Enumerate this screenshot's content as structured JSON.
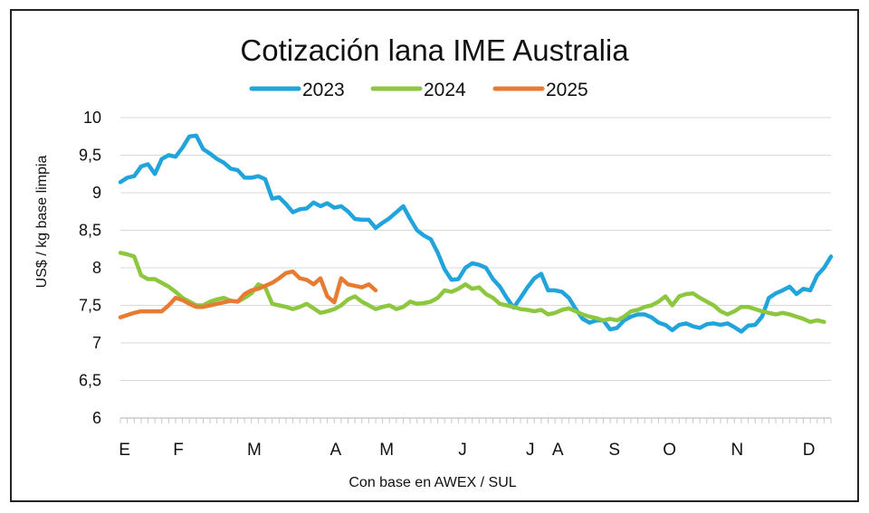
{
  "chart_data": {
    "type": "line",
    "title": "Cotización lana IME Australia",
    "ylabel": "US$ / kg base limpia",
    "xlabel": "Con base en AWEX / SUL",
    "ylim": [
      6,
      10
    ],
    "yticks": [
      "6",
      "6,5",
      "7",
      "7,5",
      "8",
      "8,5",
      "9",
      "9,5",
      "10"
    ],
    "ytick_values": [
      6,
      6.5,
      7,
      7.5,
      8,
      8.5,
      9,
      9.5,
      10
    ],
    "xlim": [
      0,
      51.5
    ],
    "x_unit": "week of year",
    "month_labels": [
      "E",
      "F",
      "M",
      "A",
      "M",
      "J",
      "J",
      "A",
      "S",
      "O",
      "N",
      "D"
    ],
    "month_label_weeks": [
      0.3,
      4.2,
      9.7,
      15.6,
      19.3,
      24.8,
      29.7,
      31.7,
      35.8,
      39.8,
      44.7,
      49.9
    ],
    "grid": "horizontal",
    "legend_position": "top",
    "series": [
      {
        "name": "2023",
        "color": "#21a4dc",
        "points": [
          [
            0,
            9.14
          ],
          [
            0.5,
            9.2
          ],
          [
            1,
            9.22
          ],
          [
            1.5,
            9.35
          ],
          [
            2,
            9.38
          ],
          [
            2.5,
            9.25
          ],
          [
            3,
            9.45
          ],
          [
            3.5,
            9.5
          ],
          [
            4,
            9.48
          ],
          [
            4.5,
            9.6
          ],
          [
            5,
            9.75
          ],
          [
            5.5,
            9.76
          ],
          [
            6,
            9.58
          ],
          [
            6.5,
            9.52
          ],
          [
            7,
            9.45
          ],
          [
            7.5,
            9.4
          ],
          [
            8,
            9.32
          ],
          [
            8.5,
            9.3
          ],
          [
            9,
            9.2
          ],
          [
            9.5,
            9.2
          ],
          [
            10,
            9.22
          ],
          [
            10.5,
            9.18
          ],
          [
            11,
            8.92
          ],
          [
            11.5,
            8.94
          ],
          [
            12,
            8.85
          ],
          [
            12.5,
            8.74
          ],
          [
            13,
            8.78
          ],
          [
            13.5,
            8.79
          ],
          [
            14,
            8.87
          ],
          [
            14.5,
            8.82
          ],
          [
            15,
            8.86
          ],
          [
            15.5,
            8.8
          ],
          [
            16,
            8.82
          ],
          [
            16.5,
            8.75
          ],
          [
            17,
            8.65
          ],
          [
            17.5,
            8.64
          ],
          [
            18,
            8.64
          ],
          [
            18.5,
            8.53
          ],
          [
            19,
            8.6
          ],
          [
            19.5,
            8.66
          ],
          [
            20,
            8.74
          ],
          [
            20.5,
            8.82
          ],
          [
            21,
            8.65
          ],
          [
            21.5,
            8.5
          ],
          [
            22,
            8.43
          ],
          [
            22.5,
            8.38
          ],
          [
            23,
            8.2
          ],
          [
            23.5,
            7.98
          ],
          [
            24,
            7.84
          ],
          [
            24.5,
            7.85
          ],
          [
            25,
            8.0
          ],
          [
            25.5,
            8.06
          ],
          [
            26,
            8.04
          ],
          [
            26.5,
            8.0
          ],
          [
            27,
            7.85
          ],
          [
            27.5,
            7.75
          ],
          [
            28,
            7.6
          ],
          [
            28.5,
            7.47
          ],
          [
            29,
            7.6
          ],
          [
            29.5,
            7.74
          ],
          [
            30,
            7.86
          ],
          [
            30.5,
            7.92
          ],
          [
            31,
            7.7
          ],
          [
            31.5,
            7.7
          ],
          [
            32,
            7.68
          ],
          [
            32.5,
            7.6
          ],
          [
            33,
            7.45
          ],
          [
            33.5,
            7.32
          ],
          [
            34,
            7.27
          ],
          [
            34.5,
            7.3
          ],
          [
            35,
            7.3
          ],
          [
            35.5,
            7.18
          ],
          [
            36,
            7.2
          ],
          [
            36.5,
            7.3
          ],
          [
            37,
            7.35
          ],
          [
            37.5,
            7.38
          ],
          [
            38,
            7.38
          ],
          [
            38.5,
            7.34
          ],
          [
            39,
            7.27
          ],
          [
            39.5,
            7.24
          ],
          [
            40,
            7.17
          ],
          [
            40.5,
            7.24
          ],
          [
            41,
            7.26
          ],
          [
            41.5,
            7.22
          ],
          [
            42,
            7.2
          ],
          [
            42.5,
            7.25
          ],
          [
            43,
            7.26
          ],
          [
            43.5,
            7.24
          ],
          [
            44,
            7.26
          ],
          [
            44.5,
            7.21
          ],
          [
            45,
            7.15
          ],
          [
            45.5,
            7.23
          ],
          [
            46,
            7.24
          ],
          [
            46.5,
            7.35
          ],
          [
            47,
            7.6
          ],
          [
            47.5,
            7.66
          ],
          [
            48,
            7.7
          ],
          [
            48.5,
            7.75
          ],
          [
            49,
            7.65
          ],
          [
            49.5,
            7.72
          ],
          [
            50,
            7.7
          ],
          [
            50.5,
            7.9
          ],
          [
            51,
            8.0
          ],
          [
            51.5,
            8.15
          ]
        ]
      },
      {
        "name": "2024",
        "color": "#8dc63f",
        "points": [
          [
            0,
            8.2
          ],
          [
            0.5,
            8.18
          ],
          [
            1,
            8.15
          ],
          [
            1.5,
            7.9
          ],
          [
            2,
            7.85
          ],
          [
            2.5,
            7.85
          ],
          [
            3,
            7.8
          ],
          [
            3.5,
            7.75
          ],
          [
            4,
            7.68
          ],
          [
            4.5,
            7.6
          ],
          [
            5,
            7.55
          ],
          [
            5.5,
            7.5
          ],
          [
            6,
            7.5
          ],
          [
            6.5,
            7.55
          ],
          [
            7,
            7.58
          ],
          [
            7.5,
            7.6
          ],
          [
            8,
            7.56
          ],
          [
            8.5,
            7.55
          ],
          [
            9,
            7.6
          ],
          [
            9.5,
            7.66
          ],
          [
            10,
            7.78
          ],
          [
            10.5,
            7.74
          ],
          [
            11,
            7.52
          ],
          [
            11.5,
            7.5
          ],
          [
            12,
            7.48
          ],
          [
            12.5,
            7.45
          ],
          [
            13,
            7.48
          ],
          [
            13.5,
            7.52
          ],
          [
            14,
            7.46
          ],
          [
            14.5,
            7.4
          ],
          [
            15,
            7.42
          ],
          [
            15.5,
            7.45
          ],
          [
            16,
            7.5
          ],
          [
            16.5,
            7.58
          ],
          [
            17,
            7.62
          ],
          [
            17.5,
            7.55
          ],
          [
            18,
            7.5
          ],
          [
            18.5,
            7.45
          ],
          [
            19,
            7.48
          ],
          [
            19.5,
            7.5
          ],
          [
            20,
            7.45
          ],
          [
            20.5,
            7.48
          ],
          [
            21,
            7.55
          ],
          [
            21.5,
            7.52
          ],
          [
            22,
            7.53
          ],
          [
            22.5,
            7.55
          ],
          [
            23,
            7.6
          ],
          [
            23.5,
            7.7
          ],
          [
            24,
            7.68
          ],
          [
            24.5,
            7.72
          ],
          [
            25,
            7.78
          ],
          [
            25.5,
            7.72
          ],
          [
            26,
            7.74
          ],
          [
            26.5,
            7.65
          ],
          [
            27,
            7.6
          ],
          [
            27.5,
            7.52
          ],
          [
            28,
            7.5
          ],
          [
            28.5,
            7.48
          ],
          [
            29,
            7.45
          ],
          [
            29.5,
            7.44
          ],
          [
            30,
            7.42
          ],
          [
            30.5,
            7.44
          ],
          [
            31,
            7.38
          ],
          [
            31.5,
            7.4
          ],
          [
            32,
            7.44
          ],
          [
            32.5,
            7.46
          ],
          [
            33,
            7.42
          ],
          [
            33.5,
            7.38
          ],
          [
            34,
            7.35
          ],
          [
            34.5,
            7.33
          ],
          [
            35,
            7.3
          ],
          [
            35.5,
            7.32
          ],
          [
            36,
            7.3
          ],
          [
            36.5,
            7.35
          ],
          [
            37,
            7.42
          ],
          [
            37.5,
            7.44
          ],
          [
            38,
            7.48
          ],
          [
            38.5,
            7.5
          ],
          [
            39,
            7.55
          ],
          [
            39.5,
            7.62
          ],
          [
            40,
            7.5
          ],
          [
            40.5,
            7.62
          ],
          [
            41,
            7.65
          ],
          [
            41.5,
            7.66
          ],
          [
            42,
            7.6
          ],
          [
            42.5,
            7.55
          ],
          [
            43,
            7.5
          ],
          [
            43.5,
            7.42
          ],
          [
            44,
            7.38
          ],
          [
            44.5,
            7.42
          ],
          [
            45,
            7.48
          ],
          [
            45.5,
            7.48
          ],
          [
            46,
            7.45
          ],
          [
            46.5,
            7.42
          ],
          [
            47,
            7.4
          ],
          [
            47.5,
            7.38
          ],
          [
            48,
            7.4
          ],
          [
            48.5,
            7.38
          ],
          [
            49,
            7.35
          ],
          [
            49.5,
            7.32
          ],
          [
            50,
            7.28
          ],
          [
            50.5,
            7.3
          ],
          [
            51,
            7.28
          ]
        ]
      },
      {
        "name": "2025",
        "color": "#e87b32",
        "points": [
          [
            0,
            7.34
          ],
          [
            0.5,
            7.37
          ],
          [
            1,
            7.4
          ],
          [
            1.5,
            7.42
          ],
          [
            2,
            7.42
          ],
          [
            2.5,
            7.42
          ],
          [
            3,
            7.42
          ],
          [
            3.5,
            7.5
          ],
          [
            4,
            7.6
          ],
          [
            4.5,
            7.57
          ],
          [
            5,
            7.52
          ],
          [
            5.5,
            7.48
          ],
          [
            6,
            7.48
          ],
          [
            6.5,
            7.5
          ],
          [
            7,
            7.52
          ],
          [
            7.5,
            7.54
          ],
          [
            8,
            7.56
          ],
          [
            8.5,
            7.55
          ],
          [
            9,
            7.65
          ],
          [
            9.5,
            7.7
          ],
          [
            10,
            7.72
          ],
          [
            10.5,
            7.76
          ],
          [
            11,
            7.8
          ],
          [
            11.5,
            7.86
          ],
          [
            12,
            7.93
          ],
          [
            12.5,
            7.95
          ],
          [
            13,
            7.86
          ],
          [
            13.5,
            7.84
          ],
          [
            14,
            7.78
          ],
          [
            14.5,
            7.86
          ],
          [
            15,
            7.62
          ],
          [
            15.5,
            7.54
          ],
          [
            16,
            7.86
          ],
          [
            16.5,
            7.78
          ],
          [
            17,
            7.76
          ],
          [
            17.5,
            7.74
          ],
          [
            18,
            7.78
          ],
          [
            18.5,
            7.7
          ]
        ]
      }
    ]
  }
}
